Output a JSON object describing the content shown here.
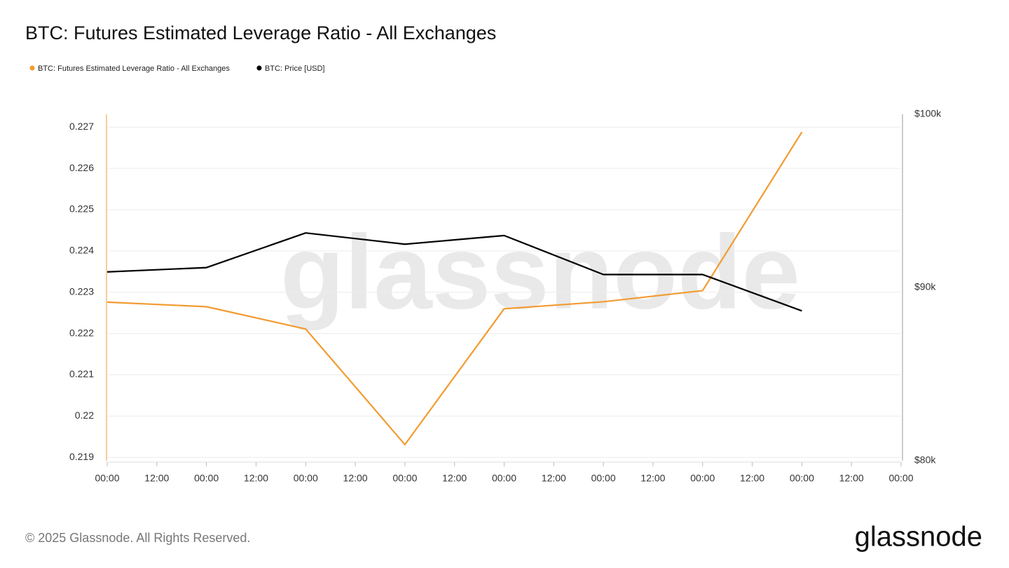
{
  "chart_data": {
    "type": "line",
    "title": "BTC: Futures Estimated Leverage Ratio - All Exchanges",
    "x": [
      0,
      24,
      48,
      72,
      96,
      120,
      144,
      168
    ],
    "xlim": [
      0,
      192
    ],
    "xticks": [
      {
        "value": 0,
        "label": "00:00"
      },
      {
        "value": 12,
        "label": "12:00"
      },
      {
        "value": 24,
        "label": "00:00"
      },
      {
        "value": 36,
        "label": "12:00"
      },
      {
        "value": 48,
        "label": "00:00"
      },
      {
        "value": 60,
        "label": "12:00"
      },
      {
        "value": 72,
        "label": "00:00"
      },
      {
        "value": 84,
        "label": "12:00"
      },
      {
        "value": 96,
        "label": "00:00"
      },
      {
        "value": 108,
        "label": "12:00"
      },
      {
        "value": 120,
        "label": "00:00"
      },
      {
        "value": 132,
        "label": "12:00"
      },
      {
        "value": 144,
        "label": "00:00"
      },
      {
        "value": 156,
        "label": "12:00"
      },
      {
        "value": 168,
        "label": "00:00"
      },
      {
        "value": 180,
        "label": "12:00"
      },
      {
        "value": 192,
        "label": "00:00"
      }
    ],
    "ylim": [
      0.21892,
      0.22731
    ],
    "yticks": [
      0.219,
      0.22,
      0.221,
      0.222,
      0.223,
      0.224,
      0.225,
      0.226,
      0.227
    ],
    "y2lim": [
      80000,
      100000
    ],
    "y2ticks": [
      {
        "value": 80000,
        "label": "$80k"
      },
      {
        "value": 90000,
        "label": "$90k"
      },
      {
        "value": 100000,
        "label": "$100k"
      }
    ],
    "grid": true,
    "legend": "top-left",
    "series": [
      {
        "name": "BTC: Futures Estimated Leverage Ratio - All Exchanges",
        "color": "#f29b30",
        "values": [
          0.22276,
          0.22265,
          0.22211,
          0.21931,
          0.2226,
          0.22277,
          0.22304,
          0.22688
        ]
      },
      {
        "name": "BTC: Price [USD]",
        "color": "#000000",
        "axis": "y2",
        "values": [
          90900,
          91150,
          93150,
          92500,
          93000,
          90750,
          90750,
          88650
        ]
      }
    ],
    "watermark": "glassnode",
    "footer": "© 2025 Glassnode. All Rights Reserved.",
    "logo": "glassnode"
  }
}
